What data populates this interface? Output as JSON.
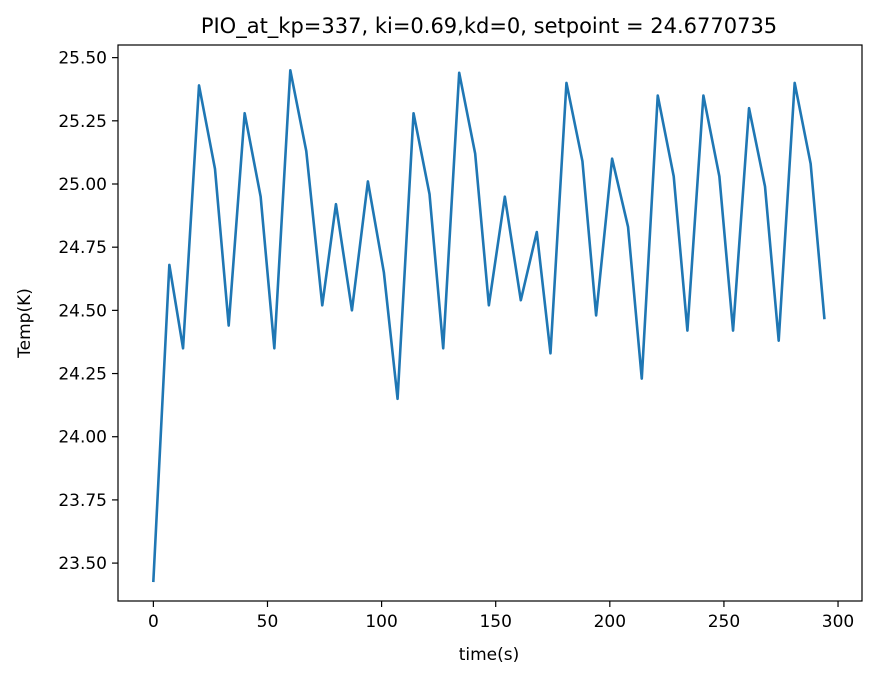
{
  "chart_data": {
    "type": "line",
    "title": "PIO_at_kp=337, ki=0.69,kd=0, setpoint = 24.6770735",
    "xlabel": "time(s)",
    "ylabel": "Temp(K)",
    "xlim": [
      -15.5,
      310.5
    ],
    "ylim": [
      23.35,
      25.55
    ],
    "xticks": [
      0,
      50,
      100,
      150,
      200,
      250,
      300
    ],
    "yticks": [
      23.5,
      23.75,
      24.0,
      24.25,
      24.5,
      24.75,
      25.0,
      25.25,
      25.5
    ],
    "xtick_labels": [
      "0",
      "50",
      "100",
      "150",
      "200",
      "250",
      "300"
    ],
    "ytick_labels": [
      "23.50",
      "23.75",
      "24.00",
      "24.25",
      "24.50",
      "24.75",
      "25.00",
      "25.25",
      "25.50"
    ],
    "grid": false,
    "series": [
      {
        "color": "#1f77b4",
        "x": [
          0,
          7,
          13,
          20,
          27,
          33,
          40,
          47,
          53,
          60,
          67,
          74,
          80,
          87,
          94,
          101,
          107,
          114,
          121,
          127,
          134,
          141,
          147,
          154,
          161,
          168,
          174,
          181,
          188,
          194,
          201,
          208,
          214,
          221,
          228,
          234,
          241,
          248,
          254,
          261,
          268,
          274,
          281,
          288,
          294
        ],
        "y": [
          23.43,
          24.68,
          24.35,
          25.39,
          25.06,
          24.44,
          25.28,
          24.95,
          24.35,
          25.45,
          25.13,
          24.52,
          24.92,
          24.5,
          25.01,
          24.65,
          24.15,
          25.28,
          24.96,
          24.35,
          25.44,
          25.12,
          24.52,
          24.95,
          24.54,
          24.81,
          24.33,
          25.4,
          25.09,
          24.48,
          25.1,
          24.83,
          24.23,
          25.35,
          25.03,
          24.42,
          25.35,
          25.03,
          24.42,
          25.3,
          24.99,
          24.38,
          25.4,
          25.08,
          24.47
        ]
      }
    ]
  }
}
